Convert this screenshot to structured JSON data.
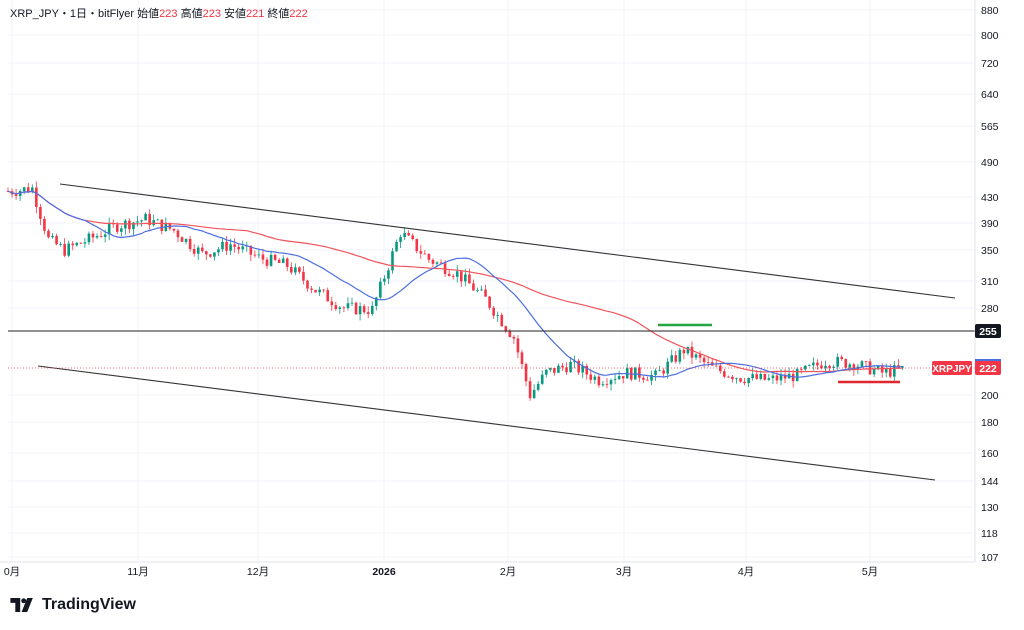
{
  "header": {
    "symbol": "XRP_JPY・1日・bitFlyer",
    "open_label": "始値",
    "open_value": "223",
    "high_label": "高値",
    "high_value": "223",
    "low_label": "安値",
    "low_value": "221",
    "close_label": "終値",
    "close_value": "222"
  },
  "price_axis": {
    "ticks": [
      "880",
      "800",
      "720",
      "640",
      "565",
      "490",
      "430",
      "390",
      "350",
      "310",
      "280",
      "200",
      "180",
      "160",
      "144",
      "130",
      "118",
      "107"
    ],
    "hline_label": "255",
    "last_price_symbol": "XRPJPY",
    "last_price_value": "222"
  },
  "time_axis": {
    "ticks": [
      "0月",
      "11月",
      "12月",
      "2026",
      "2月",
      "3月",
      "4月",
      "5月"
    ]
  },
  "brand": {
    "name": "TradingView"
  },
  "colors": {
    "up": "#089981",
    "down": "#f23645",
    "ma_fast": "#4c6fe0",
    "ma_slow": "#f0555d",
    "trendline": "#333333",
    "hline": "#222222",
    "green_mark": "#26a641",
    "red_mark": "#e0262f"
  },
  "chart_data": {
    "type": "candlestick",
    "symbol": "XRP_JPY",
    "interval": "1D",
    "exchange": "bitFlyer",
    "scale": "log",
    "ylim": [
      107,
      880
    ],
    "close_series": [
      {
        "date": "2025-10-01",
        "close": 440
      },
      {
        "date": "2025-10-06",
        "close": 445
      },
      {
        "date": "2025-10-10",
        "close": 365
      },
      {
        "date": "2025-10-14",
        "close": 350
      },
      {
        "date": "2025-10-20",
        "close": 365
      },
      {
        "date": "2025-10-27",
        "close": 385
      },
      {
        "date": "2025-11-03",
        "close": 395
      },
      {
        "date": "2025-11-10",
        "close": 378
      },
      {
        "date": "2025-11-17",
        "close": 345
      },
      {
        "date": "2025-11-24",
        "close": 358
      },
      {
        "date": "2025-12-01",
        "close": 340
      },
      {
        "date": "2025-12-08",
        "close": 330
      },
      {
        "date": "2025-12-15",
        "close": 300
      },
      {
        "date": "2025-12-22",
        "close": 280
      },
      {
        "date": "2025-12-29",
        "close": 278
      },
      {
        "date": "2026-01-05",
        "close": 375
      },
      {
        "date": "2026-01-12",
        "close": 338
      },
      {
        "date": "2026-01-19",
        "close": 320
      },
      {
        "date": "2026-01-26",
        "close": 290
      },
      {
        "date": "2026-02-02",
        "close": 250
      },
      {
        "date": "2026-02-06",
        "close": 200
      },
      {
        "date": "2026-02-10",
        "close": 218
      },
      {
        "date": "2026-02-16",
        "close": 225
      },
      {
        "date": "2026-02-23",
        "close": 212
      },
      {
        "date": "2026-03-02",
        "close": 218
      },
      {
        "date": "2026-03-09",
        "close": 215
      },
      {
        "date": "2026-03-16",
        "close": 238
      },
      {
        "date": "2026-03-23",
        "close": 222
      },
      {
        "date": "2026-03-30",
        "close": 214
      },
      {
        "date": "2026-04-06",
        "close": 212
      },
      {
        "date": "2026-04-13",
        "close": 216
      },
      {
        "date": "2026-04-20",
        "close": 228
      },
      {
        "date": "2026-04-27",
        "close": 226
      },
      {
        "date": "2026-05-04",
        "close": 218
      },
      {
        "date": "2026-05-11",
        "close": 222
      }
    ],
    "indicators": [
      "short-term moving average",
      "long-term moving average"
    ],
    "horizontal_line": 255,
    "last_price": 222,
    "ohlc_last": {
      "open": 223,
      "high": 223,
      "low": 221,
      "close": 222
    }
  }
}
